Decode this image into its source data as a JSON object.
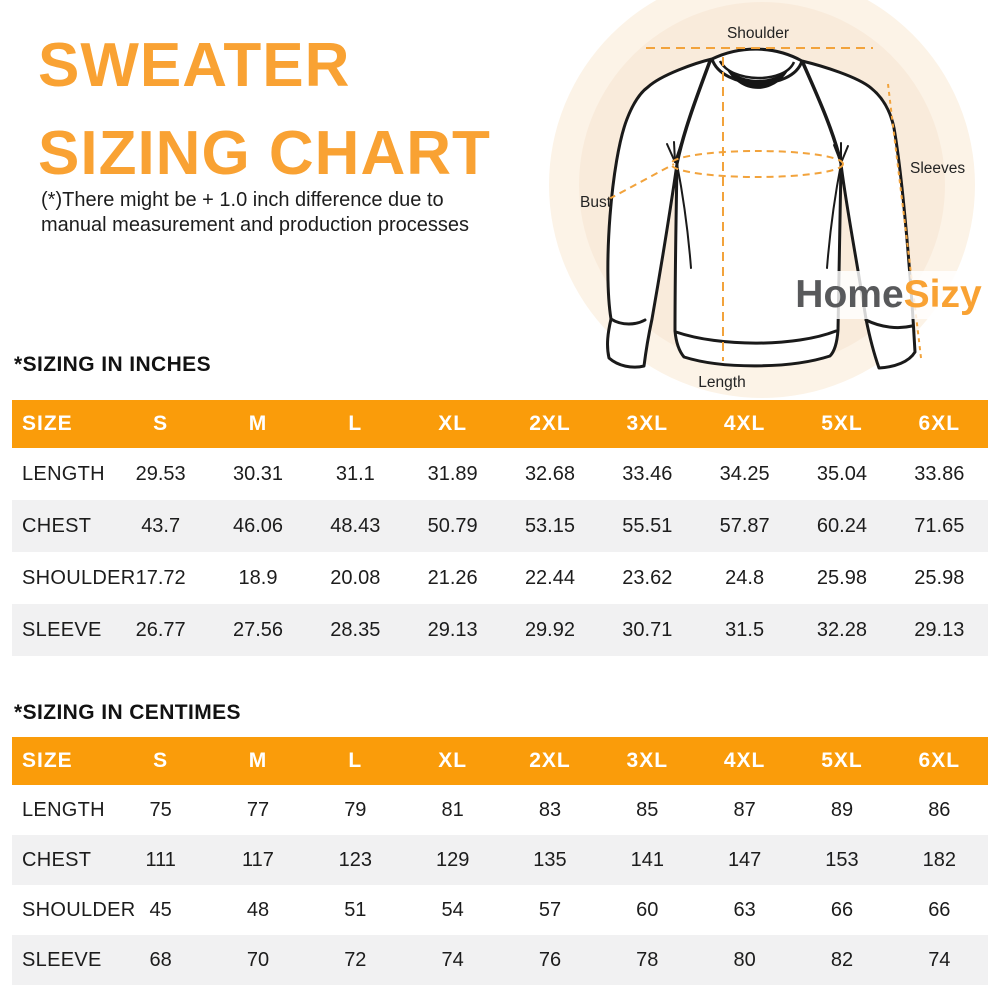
{
  "colors": {
    "title_orange": "#F9A233",
    "header_orange": "#FA9C0A",
    "dash_orange": "#F2A33C",
    "logo_gray": "#58595B",
    "row_stripe": "#F1F1F2",
    "circle_outer": "#FCF3E7",
    "circle_inner": "#F9EBDB"
  },
  "title": {
    "line1": "SWEATER",
    "line2": "SIZING CHART"
  },
  "disclaimer": {
    "line1": "(*)There might be + 1.0 inch difference due to",
    "line2": "manual measurement and production processes"
  },
  "logo": {
    "part1": "Home",
    "part2": "Sizy"
  },
  "diagram": {
    "labels": {
      "shoulder": "Shoulder",
      "sleeves": "Sleeves",
      "bust": "Bust",
      "length": "Length"
    }
  },
  "tables": [
    {
      "section_title": "*SIZING IN INCHES",
      "columns": [
        "SIZE",
        "S",
        "M",
        "L",
        "XL",
        "2XL",
        "3XL",
        "4XL",
        "5XL",
        "6XL"
      ],
      "rows": [
        {
          "label": "LENGTH",
          "values": [
            "29.53",
            "30.31",
            "31.1",
            "31.89",
            "32.68",
            "33.46",
            "34.25",
            "35.04",
            "33.86"
          ]
        },
        {
          "label": "CHEST",
          "values": [
            "43.7",
            "46.06",
            "48.43",
            "50.79",
            "53.15",
            "55.51",
            "57.87",
            "60.24",
            "71.65"
          ]
        },
        {
          "label": "SHOULDER",
          "values": [
            "17.72",
            "18.9",
            "20.08",
            "21.26",
            "22.44",
            "23.62",
            "24.8",
            "25.98",
            "25.98"
          ]
        },
        {
          "label": "SLEEVE",
          "values": [
            "26.77",
            "27.56",
            "28.35",
            "29.13",
            "29.92",
            "30.71",
            "31.5",
            "32.28",
            "29.13"
          ]
        }
      ]
    },
    {
      "section_title": "*SIZING IN CENTIMES",
      "columns": [
        "SIZE",
        "S",
        "M",
        "L",
        "XL",
        "2XL",
        "3XL",
        "4XL",
        "5XL",
        "6XL"
      ],
      "rows": [
        {
          "label": "LENGTH",
          "values": [
            "75",
            "77",
            "79",
            "81",
            "83",
            "85",
            "87",
            "89",
            "86"
          ]
        },
        {
          "label": "CHEST",
          "values": [
            "111",
            "117",
            "123",
            "129",
            "135",
            "141",
            "147",
            "153",
            "182"
          ]
        },
        {
          "label": "SHOULDER",
          "values": [
            "45",
            "48",
            "51",
            "54",
            "57",
            "60",
            "63",
            "66",
            "66"
          ]
        },
        {
          "label": "SLEEVE",
          "values": [
            "68",
            "70",
            "72",
            "74",
            "76",
            "78",
            "80",
            "82",
            "74"
          ]
        }
      ]
    }
  ]
}
